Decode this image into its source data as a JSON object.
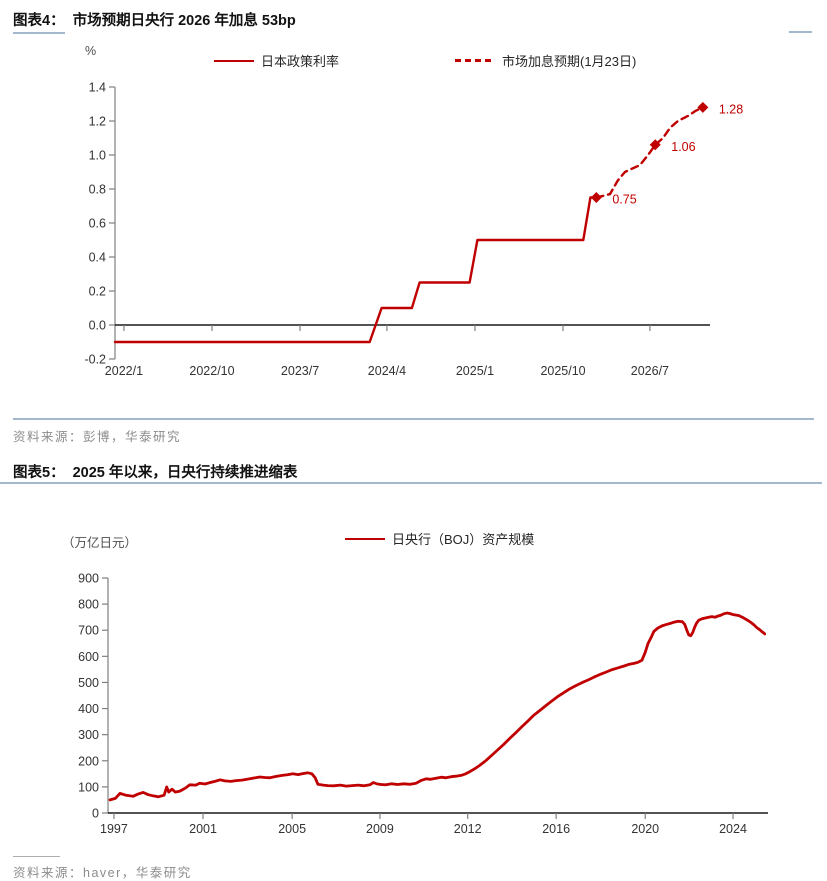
{
  "figure4": {
    "label": "图表4：",
    "title": "市场预期日央行 2026 年加息 53bp",
    "source": "资料来源：彭博，华泰研究"
  },
  "figure5": {
    "label": "图表5：",
    "title": "2025 年以来，日央行持续推进缩表",
    "source": "资料来源：haver，华泰研究"
  },
  "colors": {
    "series_red": "#C00000",
    "divider_blue": "#A3B8CD",
    "axis_gray": "#7F7F7F",
    "zero_line_black": "#1A1A1A",
    "tick_label_gray": "#333333",
    "source_gray": "#8C8C8C"
  },
  "chart_data": [
    {
      "type": "line",
      "title": "市场预期日央行 2026 年加息 53bp",
      "unit_label": "%",
      "ylim": [
        -0.2,
        1.4
      ],
      "grid": false,
      "legend_position": "top",
      "legend": [
        {
          "name": "日本政策利率",
          "style": "solid",
          "color": "#C00000"
        },
        {
          "name": "市场加息预期(1月23日)",
          "style": "dashed",
          "color": "#C00000"
        }
      ],
      "y_ticks": [
        {
          "label": "1.4",
          "value": 1.4
        },
        {
          "label": "1.2",
          "value": 1.2
        },
        {
          "label": "1.0",
          "value": 1.0
        },
        {
          "label": "0.8",
          "value": 0.8
        },
        {
          "label": "0.6",
          "value": 0.6
        },
        {
          "label": "0.4",
          "value": 0.4
        },
        {
          "label": "0.2",
          "value": 0.2
        },
        {
          "label": "0.0",
          "value": 0.0
        },
        {
          "label": "-0.2",
          "value": -0.2
        }
      ],
      "x_ticks": [
        {
          "label": "2022/1",
          "pos": 0.015
        },
        {
          "label": "2022/10",
          "pos": 0.163
        },
        {
          "label": "2023/7",
          "pos": 0.311
        },
        {
          "label": "2024/4",
          "pos": 0.457
        },
        {
          "label": "2025/1",
          "pos": 0.605
        },
        {
          "label": "2025/10",
          "pos": 0.753
        },
        {
          "label": "2026/7",
          "pos": 0.899
        }
      ],
      "series": [
        {
          "name": "日本政策利率",
          "style": "solid",
          "color": "#C00000",
          "points": [
            [
              0.0,
              -0.1
            ],
            [
              0.428,
              -0.1
            ],
            [
              0.448,
              0.1
            ],
            [
              0.499,
              0.1
            ],
            [
              0.512,
              0.25
            ],
            [
              0.596,
              0.25
            ],
            [
              0.609,
              0.5
            ],
            [
              0.787,
              0.5
            ],
            [
              0.799,
              0.75
            ],
            [
              0.809,
              0.75
            ]
          ]
        },
        {
          "name": "市场加息预期(1月23日)",
          "style": "dashed",
          "color": "#C00000",
          "points": [
            [
              0.809,
              0.75
            ],
            [
              0.832,
              0.77
            ],
            [
              0.845,
              0.85
            ],
            [
              0.857,
              0.9
            ],
            [
              0.869,
              0.92
            ],
            [
              0.882,
              0.94
            ],
            [
              0.896,
              1.0
            ],
            [
              0.908,
              1.06
            ],
            [
              0.921,
              1.1
            ],
            [
              0.933,
              1.16
            ],
            [
              0.946,
              1.2
            ],
            [
              0.963,
              1.23
            ],
            [
              0.976,
              1.26
            ],
            [
              0.988,
              1.28
            ]
          ],
          "markers": [
            {
              "pos": 0.809,
              "value": 0.75,
              "label": "0.75"
            },
            {
              "pos": 0.908,
              "value": 1.06,
              "label": "1.06"
            },
            {
              "pos": 0.988,
              "value": 1.28,
              "label": "1.28"
            }
          ]
        }
      ]
    },
    {
      "type": "line",
      "title": "2025 年以来，日央行持续推进缩表",
      "unit_label": "（万亿日元）",
      "ylim": [
        0,
        900
      ],
      "grid": false,
      "legend_position": "top",
      "legend": [
        {
          "name": "日央行（BOJ）资产规模",
          "style": "solid",
          "color": "#C00000"
        }
      ],
      "y_ticks": [
        {
          "label": "900",
          "value": 900
        },
        {
          "label": "800",
          "value": 800
        },
        {
          "label": "700",
          "value": 700
        },
        {
          "label": "600",
          "value": 600
        },
        {
          "label": "500",
          "value": 500
        },
        {
          "label": "400",
          "value": 400
        },
        {
          "label": "300",
          "value": 300
        },
        {
          "label": "200",
          "value": 200
        },
        {
          "label": "100",
          "value": 100
        },
        {
          "label": "0",
          "value": 0
        }
      ],
      "x_ticks": [
        {
          "label": "1997",
          "pos": 0.009
        },
        {
          "label": "2001",
          "pos": 0.144
        },
        {
          "label": "2005",
          "pos": 0.279
        },
        {
          "label": "2009",
          "pos": 0.412
        },
        {
          "label": "2012",
          "pos": 0.545
        },
        {
          "label": "2016",
          "pos": 0.679
        },
        {
          "label": "2020",
          "pos": 0.814
        },
        {
          "label": "2024",
          "pos": 0.947
        }
      ],
      "series": [
        {
          "name": "日央行（BOJ）资产规模",
          "style": "solid",
          "color": "#C00000",
          "points": [
            [
              0.003,
              50
            ],
            [
              0.011,
              56
            ],
            [
              0.018,
              75
            ],
            [
              0.027,
              68
            ],
            [
              0.038,
              64
            ],
            [
              0.045,
              72
            ],
            [
              0.053,
              79
            ],
            [
              0.061,
              70
            ],
            [
              0.068,
              66
            ],
            [
              0.076,
              62
            ],
            [
              0.085,
              68
            ],
            [
              0.089,
              100
            ],
            [
              0.092,
              80
            ],
            [
              0.097,
              91
            ],
            [
              0.102,
              80
            ],
            [
              0.109,
              84
            ],
            [
              0.117,
              95
            ],
            [
              0.124,
              108
            ],
            [
              0.133,
              107
            ],
            [
              0.139,
              114
            ],
            [
              0.147,
              111
            ],
            [
              0.155,
              117
            ],
            [
              0.162,
              121
            ],
            [
              0.17,
              127
            ],
            [
              0.177,
              123
            ],
            [
              0.186,
              121
            ],
            [
              0.194,
              124
            ],
            [
              0.203,
              126
            ],
            [
              0.212,
              130
            ],
            [
              0.221,
              134
            ],
            [
              0.23,
              138
            ],
            [
              0.238,
              136
            ],
            [
              0.245,
              135
            ],
            [
              0.255,
              140
            ],
            [
              0.264,
              144
            ],
            [
              0.273,
              147
            ],
            [
              0.28,
              150
            ],
            [
              0.288,
              147
            ],
            [
              0.295,
              151
            ],
            [
              0.303,
              154
            ],
            [
              0.309,
              150
            ],
            [
              0.314,
              135
            ],
            [
              0.318,
              110
            ],
            [
              0.326,
              107
            ],
            [
              0.333,
              105
            ],
            [
              0.342,
              104
            ],
            [
              0.352,
              107
            ],
            [
              0.361,
              103
            ],
            [
              0.37,
              105
            ],
            [
              0.379,
              107
            ],
            [
              0.388,
              104
            ],
            [
              0.397,
              108
            ],
            [
              0.402,
              117
            ],
            [
              0.408,
              111
            ],
            [
              0.414,
              109
            ],
            [
              0.421,
              108
            ],
            [
              0.43,
              112
            ],
            [
              0.439,
              109
            ],
            [
              0.448,
              112
            ],
            [
              0.458,
              110
            ],
            [
              0.467,
              114
            ],
            [
              0.474,
              124
            ],
            [
              0.482,
              131
            ],
            [
              0.489,
              129
            ],
            [
              0.497,
              133
            ],
            [
              0.505,
              137
            ],
            [
              0.512,
              135
            ],
            [
              0.52,
              139
            ],
            [
              0.527,
              141
            ],
            [
              0.535,
              144
            ],
            [
              0.542,
              150
            ],
            [
              0.548,
              158
            ],
            [
              0.556,
              170
            ],
            [
              0.564,
              184
            ],
            [
              0.573,
              202
            ],
            [
              0.582,
              222
            ],
            [
              0.591,
              243
            ],
            [
              0.6,
              264
            ],
            [
              0.609,
              286
            ],
            [
              0.618,
              308
            ],
            [
              0.627,
              330
            ],
            [
              0.636,
              352
            ],
            [
              0.645,
              374
            ],
            [
              0.655,
              394
            ],
            [
              0.664,
              412
            ],
            [
              0.673,
              430
            ],
            [
              0.682,
              447
            ],
            [
              0.691,
              462
            ],
            [
              0.7,
              476
            ],
            [
              0.709,
              488
            ],
            [
              0.718,
              499
            ],
            [
              0.727,
              509
            ],
            [
              0.736,
              520
            ],
            [
              0.745,
              530
            ],
            [
              0.755,
              540
            ],
            [
              0.764,
              549
            ],
            [
              0.773,
              556
            ],
            [
              0.782,
              563
            ],
            [
              0.789,
              569
            ],
            [
              0.797,
              573
            ],
            [
              0.803,
              577
            ],
            [
              0.809,
              585
            ],
            [
              0.814,
              615
            ],
            [
              0.818,
              648
            ],
            [
              0.823,
              673
            ],
            [
              0.827,
              695
            ],
            [
              0.833,
              708
            ],
            [
              0.839,
              716
            ],
            [
              0.845,
              721
            ],
            [
              0.852,
              726
            ],
            [
              0.858,
              731
            ],
            [
              0.864,
              734
            ],
            [
              0.87,
              733
            ],
            [
              0.874,
              722
            ],
            [
              0.877,
              700
            ],
            [
              0.88,
              682
            ],
            [
              0.883,
              679
            ],
            [
              0.886,
              692
            ],
            [
              0.889,
              712
            ],
            [
              0.892,
              728
            ],
            [
              0.895,
              738
            ],
            [
              0.9,
              744
            ],
            [
              0.905,
              747
            ],
            [
              0.909,
              749
            ],
            [
              0.915,
              752
            ],
            [
              0.92,
              750
            ],
            [
              0.924,
              754
            ],
            [
              0.929,
              758
            ],
            [
              0.933,
              763
            ],
            [
              0.938,
              766
            ],
            [
              0.942,
              764
            ],
            [
              0.947,
              760
            ],
            [
              0.952,
              758
            ],
            [
              0.956,
              756
            ],
            [
              0.961,
              750
            ],
            [
              0.965,
              744
            ],
            [
              0.97,
              737
            ],
            [
              0.974,
              730
            ],
            [
              0.979,
              720
            ],
            [
              0.983,
              710
            ],
            [
              0.988,
              701
            ],
            [
              0.991,
              694
            ],
            [
              0.994,
              689
            ],
            [
              0.995,
              686
            ]
          ]
        }
      ]
    }
  ]
}
